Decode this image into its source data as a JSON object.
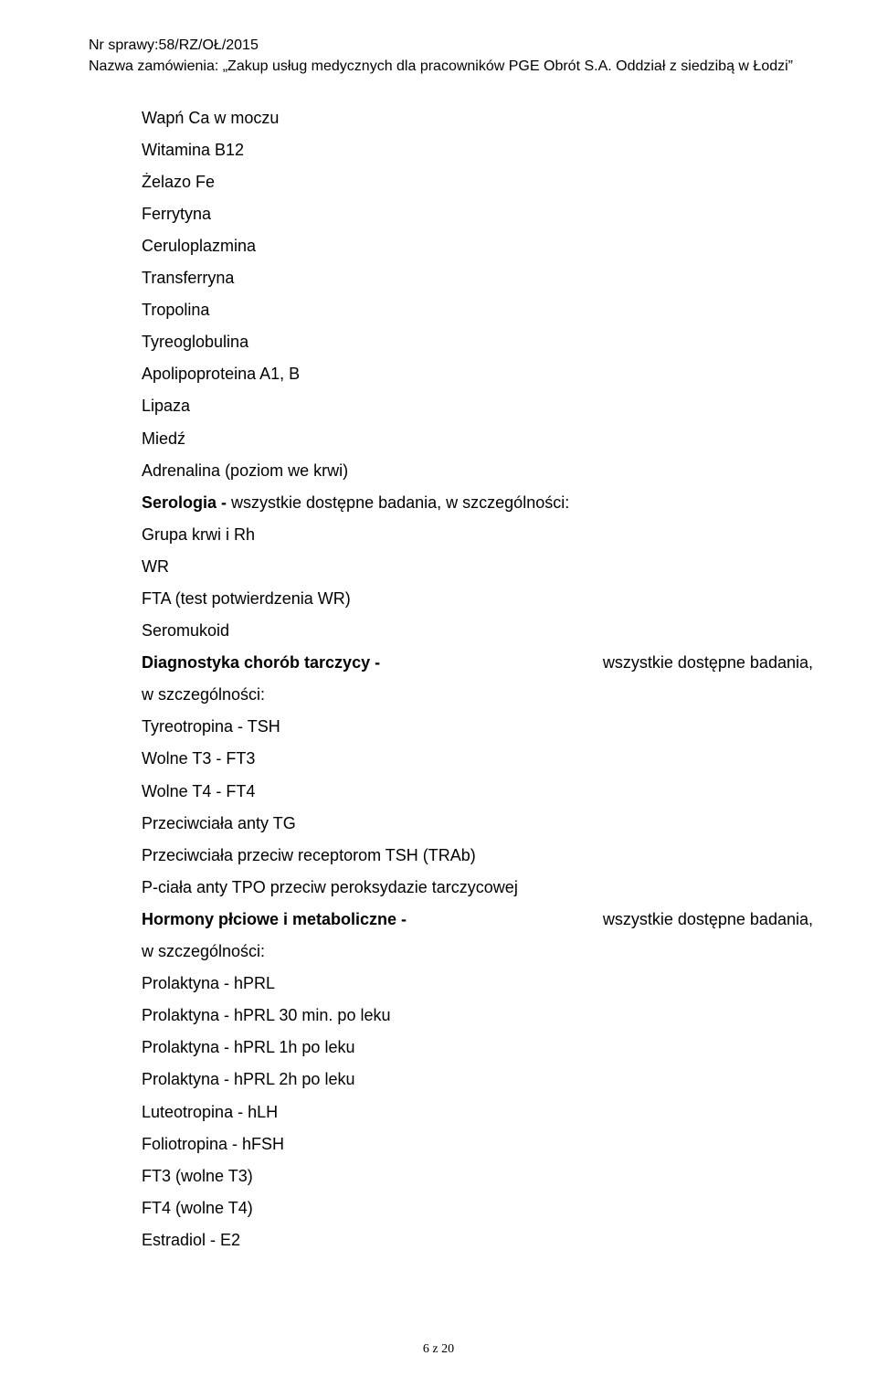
{
  "header": {
    "line1": "Nr sprawy:58/RZ/OŁ/2015",
    "line2": "Nazwa zamówienia: „Zakup usług medycznych dla pracowników PGE Obrót S.A. Oddział z siedzibą w Łodzi”"
  },
  "body": {
    "wapn": "Wapń  Ca w moczu",
    "b12": "Witamina B12",
    "zelazo": "Żelazo  Fe",
    "ferrytyna": "Ferrytyna",
    "cerulo": "Ceruloplazmina",
    "transferryna": "Transferryna",
    "tropolina": "Tropolina",
    "tyreoglobulina": "Tyreoglobulina",
    "apolipo": "Apolipoproteina A1, B",
    "lipaza": "Lipaza",
    "miedz": "Miedź",
    "adrenalina": "Adrenalina (poziom we krwi)",
    "serologia_bold": "Serologia - ",
    "serologia_rest": "wszystkie dostępne badania, w szczególności:",
    "grupa": "Grupa krwi i Rh",
    "wr": "WR",
    "fta": "FTA (test potwierdzenia WR)",
    "seromukoid": "Seromukoid",
    "diag_tarczycy_row_l": "Diagnostyka   chorób   tarczycy   -",
    "diag_tarczycy_row_r": "wszystkie   dostępne   badania,",
    "w_szczegolnosci": "w szczególności:",
    "tsh": "Tyreotropina  - TSH",
    "ft3": "Wolne T3 - FT3",
    "ft4": "Wolne T4 - FT4",
    "antytg": "Przeciwciała anty TG",
    "trab": "Przeciwciała przeciw receptorom TSH (TRAb)",
    "tpo": "P-ciała anty TPO przeciw peroksydazie tarczycowej",
    "hormony_row_l": "Hormony  płciowe  i  metaboliczne  -",
    "hormony_row_r": "wszystkie  dostępne  badania,",
    "prl": "Prolaktyna  - hPRL",
    "prl30": "Prolaktyna  - hPRL 30 min. po leku",
    "prl1h": "Prolaktyna  - hPRL 1h po leku",
    "prl2h": "Prolaktyna  - hPRL  2h po leku",
    "lh": "Luteotropina - hLH",
    "fsh": "Foliotropina - hFSH",
    "ft3w": "FT3 (wolne T3)",
    "ft4w": "FT4 (wolne T4)",
    "e2": "Estradiol - E2"
  },
  "page_num": "6 z 20"
}
